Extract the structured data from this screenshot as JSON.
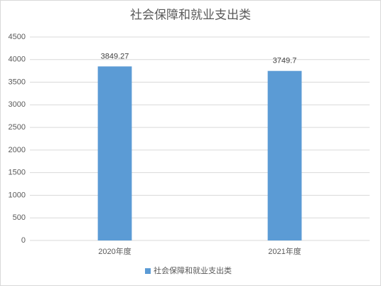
{
  "chart_data": {
    "type": "bar",
    "title": "社会保障和就业支出类",
    "categories": [
      "2020年度",
      "2021年度"
    ],
    "series": [
      {
        "name": "社会保障和就业支出类",
        "color": "#5b9bd5",
        "values": [
          3849.27,
          3749.7
        ]
      }
    ],
    "ylim": [
      0,
      4500
    ],
    "yticks": [
      0,
      500,
      1000,
      1500,
      2000,
      2500,
      3000,
      3500,
      4000,
      4500
    ],
    "grid": true,
    "legend": "bottom"
  }
}
